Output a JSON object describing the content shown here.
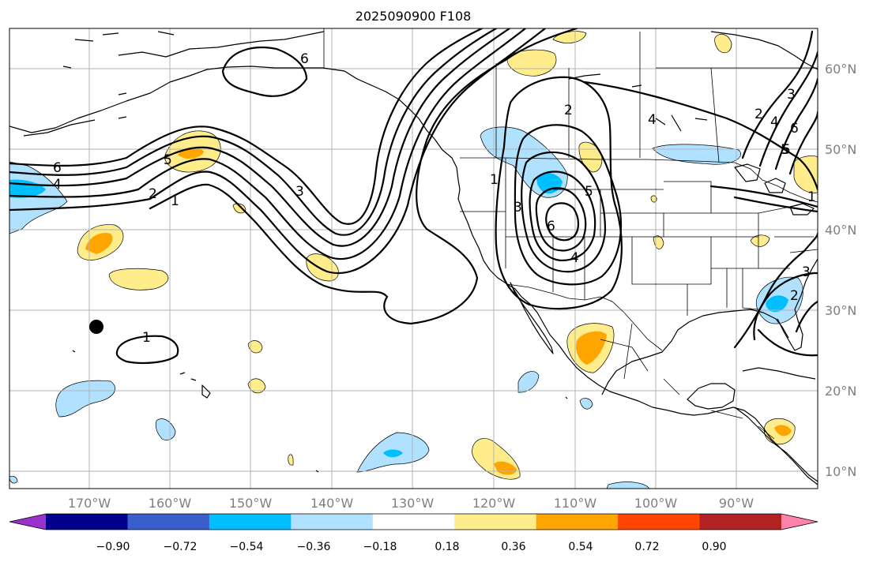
{
  "title": "2025090900 F108",
  "lon_ticks": [
    "170°W",
    "160°W",
    "150°W",
    "140°W",
    "130°W",
    "120°W",
    "110°W",
    "100°W",
    "90°W"
  ],
  "lat_ticks": [
    "60°N",
    "50°N",
    "40°N",
    "30°N",
    "20°N",
    "10°N"
  ],
  "colorbar": {
    "labels": [
      "−0.90",
      "−0.72",
      "−0.54",
      "−0.36",
      "−0.18",
      "0.18",
      "0.36",
      "0.54",
      "0.72",
      "0.90"
    ],
    "colors": [
      "#9a32cd",
      "#00008b",
      "#3a5fcd",
      "#00bfff",
      "#b0e2ff",
      "#ffffff",
      "#ffec8b",
      "#ffa500",
      "#ff4500",
      "#b22222",
      "#ff82ab"
    ]
  },
  "contour_labels": [
    "6",
    "4",
    "2",
    "1",
    "5",
    "3",
    "1",
    "6",
    "5",
    "4",
    "3",
    "2",
    "1",
    "4",
    "5",
    "6",
    "3",
    "2",
    "1",
    "6",
    "5",
    "4",
    "3",
    "2"
  ],
  "colors": {
    "land_line": "#000000",
    "grid": "#b3b3b3",
    "contour": "#000000"
  }
}
